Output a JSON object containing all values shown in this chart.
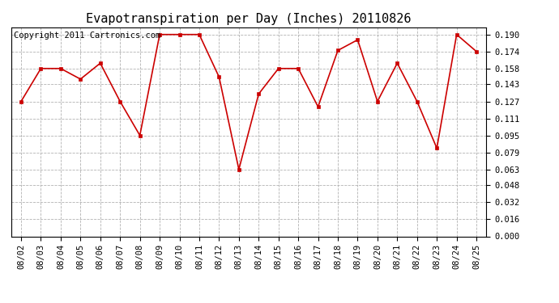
{
  "title": "Evapotranspiration per Day (Inches) 20110826",
  "copyright_text": "Copyright 2011 Cartronics.com",
  "x_labels": [
    "08/02",
    "08/03",
    "08/04",
    "08/05",
    "08/06",
    "08/07",
    "08/08",
    "08/09",
    "08/10",
    "08/11",
    "08/12",
    "08/13",
    "08/14",
    "08/15",
    "08/16",
    "08/17",
    "08/18",
    "08/19",
    "08/20",
    "08/21",
    "08/22",
    "08/23",
    "08/24",
    "08/25"
  ],
  "y_values": [
    0.127,
    0.158,
    0.158,
    0.148,
    0.163,
    0.127,
    0.095,
    0.19,
    0.19,
    0.19,
    0.15,
    0.063,
    0.134,
    0.158,
    0.158,
    0.122,
    0.175,
    0.185,
    0.127,
    0.163,
    0.127,
    0.083,
    0.19,
    0.174
  ],
  "line_color": "#cc0000",
  "marker": "s",
  "marker_size": 3,
  "marker_color": "#cc0000",
  "bg_color": "#ffffff",
  "plot_bg_color": "#ffffff",
  "grid_color": "#aaaaaa",
  "ylim_min": 0.0,
  "ylim_max": 0.1968,
  "ytick_values": [
    0.0,
    0.016,
    0.032,
    0.048,
    0.063,
    0.079,
    0.095,
    0.111,
    0.127,
    0.143,
    0.158,
    0.174,
    0.19
  ],
  "title_fontsize": 11,
  "copyright_fontsize": 7.5,
  "tick_fontsize": 7.5,
  "figwidth": 6.9,
  "figheight": 3.75,
  "dpi": 100
}
